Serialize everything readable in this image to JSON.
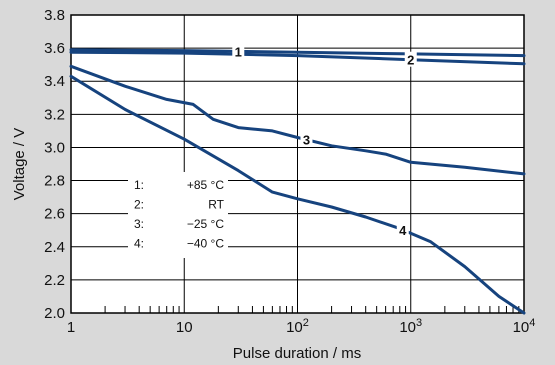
{
  "chart_data": {
    "type": "line",
    "title": "",
    "xlabel": "Pulse duration / ms",
    "ylabel": "Voltage / V",
    "xscale": "log",
    "xlim": [
      1,
      10000
    ],
    "ylim": [
      2.0,
      3.8
    ],
    "grid": true,
    "x_tick_labels": [
      {
        "value": 1,
        "base": "1",
        "exp": ""
      },
      {
        "value": 10,
        "base": "10",
        "exp": ""
      },
      {
        "value": 100,
        "base": "10",
        "exp": "2"
      },
      {
        "value": 1000,
        "base": "10",
        "exp": "3"
      },
      {
        "value": 10000,
        "base": "10",
        "exp": "4"
      }
    ],
    "y_ticks": [
      "2.0",
      "2.2",
      "2.4",
      "2.6",
      "2.8",
      "3.0",
      "3.2",
      "3.4",
      "3.6",
      "3.8"
    ],
    "series": [
      {
        "name": "1",
        "label_at": 30,
        "points": [
          [
            1,
            3.59
          ],
          [
            10,
            3.585
          ],
          [
            30,
            3.58
          ],
          [
            100,
            3.575
          ],
          [
            1000,
            3.565
          ],
          [
            10000,
            3.555
          ]
        ]
      },
      {
        "name": "2",
        "label_at": 1000,
        "points": [
          [
            1,
            3.575
          ],
          [
            10,
            3.57
          ],
          [
            100,
            3.555
          ],
          [
            1000,
            3.53
          ],
          [
            10000,
            3.505
          ]
        ]
      },
      {
        "name": "3",
        "label_at": 120,
        "points": [
          [
            1,
            3.49
          ],
          [
            3,
            3.37
          ],
          [
            7,
            3.29
          ],
          [
            12,
            3.26
          ],
          [
            18,
            3.17
          ],
          [
            30,
            3.12
          ],
          [
            60,
            3.1
          ],
          [
            100,
            3.06
          ],
          [
            200,
            3.01
          ],
          [
            400,
            2.98
          ],
          [
            600,
            2.96
          ],
          [
            1000,
            2.91
          ],
          [
            3000,
            2.88
          ],
          [
            10000,
            2.84
          ]
        ]
      },
      {
        "name": "4",
        "label_at": 850,
        "points": [
          [
            1,
            3.43
          ],
          [
            3,
            3.23
          ],
          [
            10,
            3.05
          ],
          [
            30,
            2.86
          ],
          [
            60,
            2.73
          ],
          [
            100,
            2.69
          ],
          [
            200,
            2.64
          ],
          [
            400,
            2.58
          ],
          [
            800,
            2.51
          ],
          [
            1500,
            2.43
          ],
          [
            3000,
            2.28
          ],
          [
            6000,
            2.1
          ],
          [
            10000,
            2.0
          ]
        ]
      }
    ],
    "legend": {
      "placement": "left-middle",
      "entries": [
        {
          "key": "1:",
          "value": "+85 °C"
        },
        {
          "key": "2:",
          "value": "RT"
        },
        {
          "key": "3:",
          "value": "−25 °C"
        },
        {
          "key": "4:",
          "value": "−40 °C"
        }
      ]
    },
    "colors": {
      "line": "#16437e",
      "grid": "#000000",
      "plot_bg": "#ffffff",
      "page_bg": "#d9d9d9"
    }
  }
}
